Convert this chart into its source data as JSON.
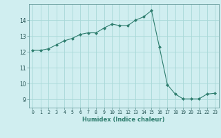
{
  "x": [
    0,
    1,
    2,
    3,
    4,
    5,
    6,
    7,
    8,
    9,
    10,
    11,
    12,
    13,
    14,
    15,
    16,
    17,
    18,
    19,
    20,
    21,
    22,
    23
  ],
  "y": [
    12.1,
    12.1,
    12.2,
    12.45,
    12.7,
    12.85,
    13.1,
    13.2,
    13.2,
    13.5,
    13.75,
    13.65,
    13.65,
    14.0,
    14.2,
    14.6,
    12.3,
    9.95,
    9.35,
    9.05,
    9.05,
    9.05,
    9.35,
    9.4
  ],
  "line_color": "#2e7d6e",
  "marker": "D",
  "marker_size": 2.0,
  "bg_color": "#d0eef0",
  "grid_color": "#a8d8d8",
  "xlabel": "Humidex (Indice chaleur)",
  "ylim": [
    8.5,
    15.0
  ],
  "xlim": [
    -0.5,
    23.5
  ],
  "yticks": [
    9,
    10,
    11,
    12,
    13,
    14
  ],
  "xticks": [
    0,
    1,
    2,
    3,
    4,
    5,
    6,
    7,
    8,
    9,
    10,
    11,
    12,
    13,
    14,
    15,
    16,
    17,
    18,
    19,
    20,
    21,
    22,
    23
  ]
}
